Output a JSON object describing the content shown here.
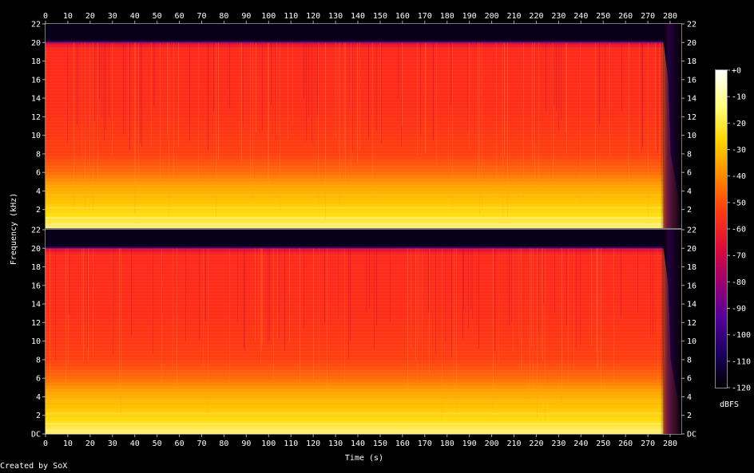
{
  "footer": {
    "credit": "Created by SoX"
  },
  "chart_data": {
    "type": "heatmap",
    "title": "",
    "xlabel": "Time (s)",
    "ylabel": "Frequency (kHz)",
    "xlim": [
      0,
      285
    ],
    "ylim": [
      0,
      22
    ],
    "x_ticks": [
      0,
      10,
      20,
      30,
      40,
      50,
      60,
      70,
      80,
      90,
      100,
      110,
      120,
      130,
      140,
      150,
      160,
      170,
      180,
      190,
      200,
      210,
      220,
      230,
      240,
      250,
      260,
      270,
      280
    ],
    "channels": [
      {
        "y_tick_labels": [
          "22",
          "20",
          "18",
          "16",
          "14",
          "12",
          "10",
          "8",
          "6",
          "4",
          "2"
        ],
        "y_tick_values": [
          22,
          20,
          18,
          16,
          14,
          12,
          10,
          8,
          6,
          4,
          2
        ]
      },
      {
        "y_tick_labels": [
          "22",
          "20",
          "18",
          "16",
          "14",
          "12",
          "10",
          "8",
          "6",
          "4",
          "2",
          "DC"
        ],
        "y_tick_values": [
          22,
          20,
          18,
          16,
          14,
          12,
          10,
          8,
          6,
          4,
          2,
          0
        ]
      }
    ],
    "signal": {
      "upper_cutoff_khz": 20,
      "audio_end_s": 277,
      "fade_end_s": 284
    },
    "colorbar": {
      "label": "dBFS",
      "min": -120,
      "max": 0,
      "tick_labels": [
        "+0",
        "-10",
        "-20",
        "-30",
        "-40",
        "-50",
        "-60",
        "-70",
        "-80",
        "-90",
        "-100",
        "-110",
        "-120"
      ],
      "tick_values": [
        0,
        -10,
        -20,
        -30,
        -40,
        -50,
        -60,
        -70,
        -80,
        -90,
        -100,
        -110,
        -120
      ],
      "colors": [
        "#ffffff",
        "#ffff80",
        "#ffd400",
        "#ff8a00",
        "#ff3b12",
        "#dc0d38",
        "#9c0070",
        "#55009a",
        "#1b0060",
        "#000000"
      ]
    }
  }
}
